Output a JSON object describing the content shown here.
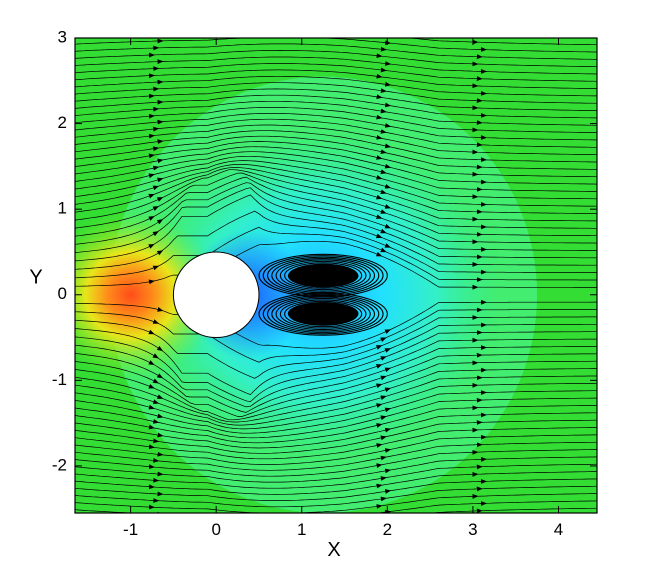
{
  "chart_data": {
    "type": "contour-streamline",
    "title": "",
    "xlabel": "X",
    "ylabel": "Y",
    "xlim": [
      -1.65,
      4.45
    ],
    "ylim": [
      -2.55,
      3.0
    ],
    "xticks": [
      -1,
      0,
      1,
      2,
      3,
      4
    ],
    "yticks": [
      -2,
      -1,
      0,
      1,
      2,
      3
    ],
    "xtick_labels": [
      "-1",
      "0",
      "1",
      "2",
      "3",
      "4"
    ],
    "ytick_labels": [
      "-2",
      "-1",
      "0",
      "1",
      "2",
      "3"
    ],
    "cylinder": {
      "center": [
        0,
        0
      ],
      "radius": 0.5
    },
    "recirculation_bubble": {
      "x_start": 0.5,
      "x_end": 2.0,
      "half_height": 0.45
    },
    "grid": false,
    "legend": "none",
    "colors": {
      "freestream": "#33dd33",
      "stagnation": "#ff5a1a",
      "wake_low": "#1e6bff",
      "wake_mid": "#2ff5e0",
      "streamline": "#000000",
      "body": "#ffffff"
    }
  }
}
